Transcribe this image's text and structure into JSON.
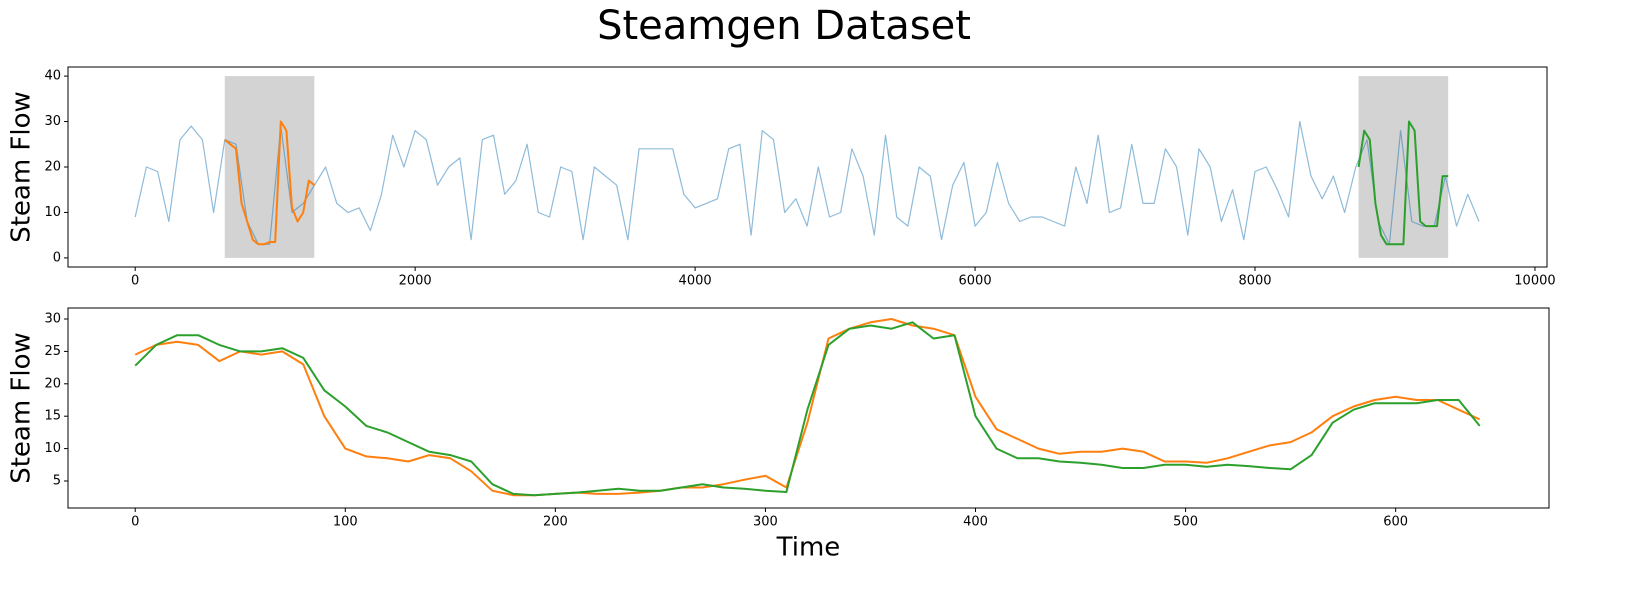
{
  "title": "Steamgen Dataset",
  "chart_data": [
    {
      "type": "line",
      "ylabel": "Steam Flow",
      "xlim": [
        -480,
        10086
      ],
      "ylim": [
        -2,
        42
      ],
      "xticks": [
        0,
        2000,
        4000,
        6000,
        8000,
        10000
      ],
      "yticks": [
        0,
        10,
        20,
        30,
        40
      ],
      "spans": [
        {
          "x": [
            640,
            1280
          ],
          "y": [
            0,
            40
          ],
          "color": "#d3d3d3"
        },
        {
          "x": [
            8740,
            9380
          ],
          "y": [
            0,
            40
          ],
          "color": "#d3d3d3"
        }
      ],
      "series": [
        {
          "color": "#1f77b4",
          "alpha": 0.5,
          "width": 1.2,
          "x": [
            0,
            80,
            160,
            240,
            320,
            400,
            480,
            560,
            640,
            720,
            800,
            880,
            960,
            1040,
            1120,
            1200,
            1280,
            1360,
            1440,
            1520,
            1600,
            1680,
            1760,
            1840,
            1920,
            2000,
            2080,
            2160,
            2240,
            2320,
            2400,
            2480,
            2560,
            2640,
            2720,
            2800,
            2880,
            2960,
            3040,
            3120,
            3200,
            3280,
            3360,
            3440,
            3520,
            3600,
            3680,
            3760,
            3840,
            3920,
            4000,
            4080,
            4160,
            4240,
            4320,
            4400,
            4480,
            4560,
            4640,
            4720,
            4800,
            4880,
            4960,
            5040,
            5120,
            5200,
            5280,
            5360,
            5440,
            5520,
            5600,
            5680,
            5760,
            5840,
            5920,
            6000,
            6080,
            6160,
            6240,
            6320,
            6400,
            6480,
            6560,
            6640,
            6720,
            6800,
            6880,
            6960,
            7040,
            7120,
            7200,
            7280,
            7360,
            7440,
            7520,
            7600,
            7680,
            7760,
            7840,
            7920,
            8000,
            8080,
            8160,
            8240,
            8320,
            8400,
            8480,
            8560,
            8640,
            8720,
            8800,
            8880,
            8960,
            9040,
            9120,
            9200,
            9280,
            9360,
            9440,
            9520,
            9600
          ],
          "values": [
            9,
            20,
            19,
            8,
            26,
            29,
            26,
            10,
            26,
            25,
            8,
            3,
            3,
            29,
            10,
            12,
            16,
            20,
            12,
            10,
            11,
            6,
            14,
            27,
            20,
            28,
            26,
            16,
            20,
            22,
            4,
            26,
            27,
            14,
            17,
            25,
            10,
            9,
            20,
            19,
            4,
            20,
            18,
            16,
            4,
            24,
            24,
            24,
            24,
            14,
            11,
            12,
            13,
            24,
            25,
            5,
            28,
            26,
            10,
            13,
            7,
            20,
            9,
            10,
            24,
            18,
            5,
            27,
            9,
            7,
            20,
            18,
            4,
            16,
            21,
            7,
            10,
            21,
            12,
            8,
            9,
            9,
            8,
            7,
            20,
            12,
            27,
            10,
            11,
            25,
            12,
            12,
            24,
            20,
            5,
            24,
            20,
            8,
            15,
            4,
            19,
            20,
            15,
            9,
            30,
            18,
            13,
            18,
            10,
            20,
            26,
            8,
            3,
            28,
            8,
            7,
            7,
            18,
            7,
            14,
            8
          ]
        },
        {
          "color": "#ff7f0e",
          "alpha": 1,
          "width": 2,
          "x": [
            640,
            680,
            720,
            760,
            800,
            840,
            880,
            920,
            960,
            1000,
            1040,
            1080,
            1120,
            1160,
            1200,
            1240,
            1280
          ],
          "values": [
            26,
            25,
            24,
            12,
            8,
            4,
            3,
            3,
            3.5,
            3.5,
            30,
            28,
            11,
            8,
            10,
            17,
            16
          ]
        },
        {
          "color": "#2ca02c",
          "alpha": 1,
          "width": 2,
          "x": [
            8740,
            8780,
            8820,
            8860,
            8900,
            8940,
            8980,
            9020,
            9060,
            9100,
            9140,
            9180,
            9220,
            9260,
            9300,
            9340,
            9380
          ],
          "values": [
            20,
            28,
            26,
            12,
            5,
            3,
            3,
            3,
            3,
            30,
            28,
            8,
            7,
            7,
            7,
            18,
            18
          ]
        }
      ]
    },
    {
      "type": "line",
      "ylabel": "Steam Flow",
      "xlabel": "Time",
      "xlim": [
        -32,
        673
      ],
      "ylim": [
        0.83,
        31.7
      ],
      "xticks": [
        0,
        100,
        200,
        300,
        400,
        500,
        600
      ],
      "yticks": [
        5,
        10,
        15,
        20,
        25,
        30
      ],
      "series": [
        {
          "color": "#ff7f0e",
          "alpha": 1,
          "width": 2,
          "x": [
            0,
            10,
            20,
            30,
            40,
            50,
            60,
            70,
            80,
            90,
            100,
            110,
            120,
            130,
            140,
            150,
            160,
            170,
            180,
            190,
            200,
            210,
            220,
            230,
            240,
            250,
            260,
            270,
            280,
            290,
            300,
            310,
            320,
            330,
            340,
            350,
            360,
            370,
            380,
            390,
            400,
            410,
            420,
            430,
            440,
            450,
            460,
            470,
            480,
            490,
            500,
            510,
            520,
            530,
            540,
            550,
            560,
            570,
            580,
            590,
            600,
            610,
            620,
            630,
            640
          ],
          "values": [
            24.5,
            26,
            26.5,
            26,
            23.5,
            25,
            24.5,
            25,
            23,
            15,
            10,
            8.8,
            8.5,
            8,
            9,
            8.5,
            6.5,
            3.5,
            2.8,
            2.8,
            3,
            3.2,
            3,
            3,
            3.2,
            3.5,
            4,
            4,
            4.5,
            5.2,
            5.8,
            4,
            14,
            27,
            28.5,
            29.5,
            30,
            29,
            28.5,
            27.5,
            18,
            13,
            11.5,
            10,
            9.2,
            9.5,
            9.5,
            10,
            9.5,
            8,
            8,
            7.8,
            8.5,
            9.5,
            10.5,
            11,
            12.5,
            15,
            16.5,
            17.5,
            18,
            17.5,
            17.5,
            16,
            14.5
          ]
        },
        {
          "color": "#2ca02c",
          "alpha": 1,
          "width": 2,
          "x": [
            0,
            10,
            20,
            30,
            40,
            50,
            60,
            70,
            80,
            90,
            100,
            110,
            120,
            130,
            140,
            150,
            160,
            170,
            180,
            190,
            200,
            210,
            220,
            230,
            240,
            250,
            260,
            270,
            280,
            290,
            300,
            310,
            320,
            330,
            340,
            350,
            360,
            370,
            380,
            390,
            400,
            410,
            420,
            430,
            440,
            450,
            460,
            470,
            480,
            490,
            500,
            510,
            520,
            530,
            540,
            550,
            560,
            570,
            580,
            590,
            600,
            610,
            620,
            630,
            640
          ],
          "values": [
            22.8,
            26,
            27.5,
            27.5,
            26,
            25,
            25,
            25.5,
            24,
            19,
            16.5,
            13.5,
            12.5,
            11,
            9.5,
            9,
            8,
            4.5,
            3,
            2.8,
            3,
            3.2,
            3.5,
            3.8,
            3.5,
            3.5,
            4,
            4.5,
            4,
            3.8,
            3.5,
            3.3,
            16,
            26,
            28.5,
            29,
            28.5,
            29.5,
            27,
            27.5,
            15,
            10,
            8.5,
            8.5,
            8,
            7.8,
            7.5,
            7,
            7,
            7.5,
            7.5,
            7.2,
            7.5,
            7.3,
            7,
            6.8,
            9,
            14,
            16,
            17,
            17,
            17,
            17.5,
            17.5,
            13.5
          ]
        }
      ]
    }
  ]
}
